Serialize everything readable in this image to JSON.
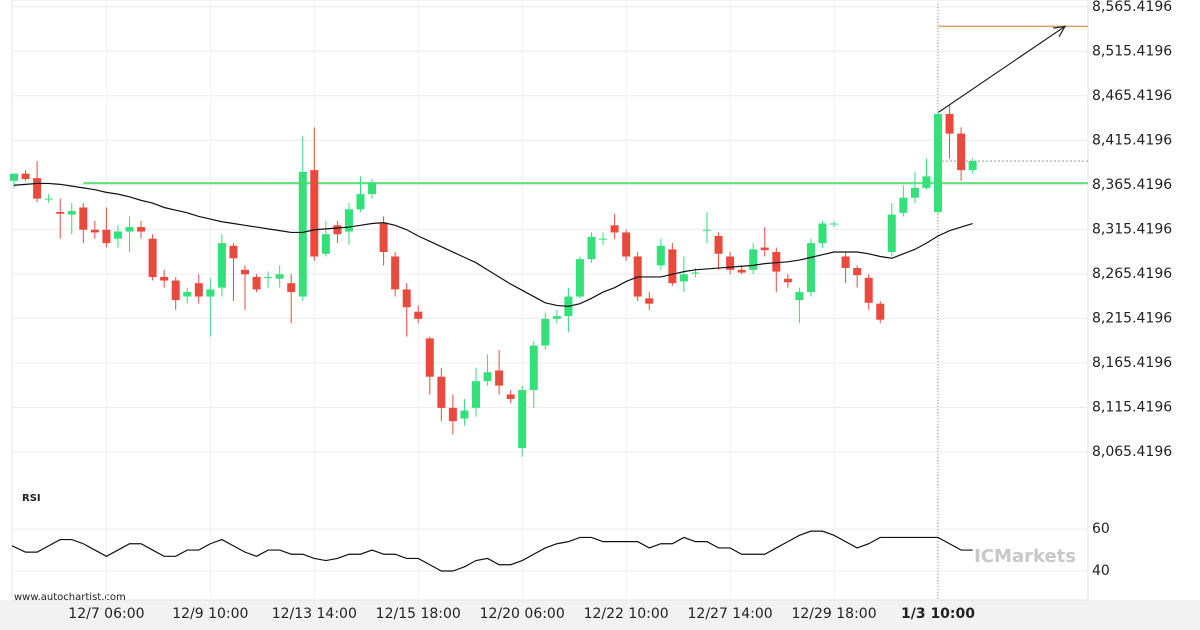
{
  "chart_data": {
    "type": "candlestick",
    "categories": [
      null,
      null,
      null,
      null,
      null,
      null,
      null,
      null,
      "12/7 06:00",
      null,
      null,
      null,
      null,
      null,
      null,
      null,
      null,
      "12/9 10:00",
      null,
      null,
      null,
      null,
      null,
      null,
      null,
      null,
      "12/13 14:00",
      null,
      null,
      null,
      null,
      null,
      null,
      null,
      null,
      "12/15 18:00",
      null,
      null,
      null,
      null,
      null,
      null,
      null,
      null,
      "12/20 06:00",
      null,
      null,
      null,
      null,
      null,
      null,
      null,
      null,
      "12/22 10:00",
      null,
      null,
      null,
      null,
      null,
      null,
      null,
      null,
      "12/27 14:00",
      null,
      null,
      null,
      null,
      null,
      null,
      null,
      null,
      "12/29 18:00",
      null,
      null,
      null,
      null,
      null,
      null,
      null,
      null,
      "1/3 10:00",
      null,
      null,
      null
    ],
    "open": [
      8370,
      8378,
      8373,
      8350,
      8335,
      8332,
      8340,
      8315,
      8315,
      8305,
      8313,
      8318,
      8305,
      8262,
      8258,
      8240,
      8255,
      8240,
      8250,
      8297,
      8270,
      8262,
      8262,
      8260,
      8255,
      8240,
      8382,
      8288,
      8320,
      8313,
      8338,
      8355,
      8322,
      8285,
      8248,
      8223,
      8193,
      8150,
      8115,
      8103,
      8115,
      8145,
      8157,
      8130,
      8070,
      8135,
      8185,
      8215,
      8218,
      8240,
      8282,
      8305,
      8320,
      8312,
      8285,
      8238,
      8275,
      8293,
      8257,
      8267,
      8315,
      8308,
      8285,
      8270,
      8270,
      8295,
      8290,
      8260,
      8236,
      8245,
      8300,
      8322,
      8285,
      8272,
      8261,
      8232,
      8290,
      8334,
      8351,
      8362,
      8335,
      8445,
      8423,
      8382
    ],
    "high": [
      8378,
      8382,
      8392,
      8355,
      8350,
      8345,
      8345,
      8325,
      8340,
      8320,
      8330,
      8325,
      8310,
      8270,
      8262,
      8250,
      8265,
      8260,
      8310,
      8300,
      8275,
      8265,
      8268,
      8275,
      8265,
      8420,
      8430,
      8325,
      8325,
      8345,
      8375,
      8372,
      8330,
      8290,
      8255,
      8230,
      8195,
      8160,
      8130,
      8125,
      8160,
      8175,
      8180,
      8135,
      8140,
      8190,
      8222,
      8225,
      8250,
      8285,
      8312,
      8312,
      8333,
      8315,
      8290,
      8245,
      8305,
      8300,
      8285,
      8272,
      8335,
      8312,
      8290,
      8275,
      8300,
      8318,
      8295,
      8265,
      8250,
      8305,
      8325,
      8325,
      8290,
      8275,
      8265,
      8235,
      8345,
      8365,
      8380,
      8395,
      8448,
      8455,
      8430,
      8395
    ],
    "low": [
      8362,
      8370,
      8346,
      8345,
      8305,
      8310,
      8300,
      8305,
      8295,
      8295,
      8290,
      8305,
      8258,
      8250,
      8225,
      8232,
      8232,
      8195,
      8240,
      8235,
      8225,
      8245,
      8250,
      8250,
      8210,
      8235,
      8280,
      8285,
      8300,
      8298,
      8335,
      8350,
      8275,
      8240,
      8195,
      8210,
      8130,
      8100,
      8085,
      8095,
      8105,
      8140,
      8130,
      8120,
      8060,
      8115,
      8180,
      8210,
      8200,
      8238,
      8278,
      8298,
      8305,
      8280,
      8235,
      8225,
      8270,
      8252,
      8245,
      8262,
      8300,
      8270,
      8265,
      8265,
      8265,
      8285,
      8245,
      8250,
      8210,
      8240,
      8295,
      8318,
      8255,
      8250,
      8225,
      8210,
      8285,
      8330,
      8345,
      8360,
      8333,
      8395,
      8370,
      8378
    ],
    "close": [
      8378,
      8372,
      8350,
      8350,
      8333,
      8336,
      8315,
      8312,
      8300,
      8313,
      8318,
      8313,
      8262,
      8258,
      8236,
      8245,
      8240,
      8248,
      8300,
      8283,
      8265,
      8248,
      8262,
      8265,
      8245,
      8380,
      8285,
      8310,
      8310,
      8338,
      8355,
      8368,
      8290,
      8248,
      8228,
      8215,
      8150,
      8115,
      8100,
      8112,
      8145,
      8155,
      8140,
      8125,
      8135,
      8185,
      8215,
      8218,
      8240,
      8282,
      8307,
      8305,
      8312,
      8285,
      8240,
      8232,
      8297,
      8255,
      8265,
      8267,
      8315,
      8288,
      8270,
      8267,
      8293,
      8292,
      8268,
      8256,
      8245,
      8300,
      8322,
      8322,
      8272,
      8264,
      8233,
      8214,
      8332,
      8351,
      8362,
      8375,
      8445,
      8423,
      8382,
      8392
    ],
    "moving_average": [
      8365,
      8366,
      8367,
      8367,
      8366,
      8364,
      8362,
      8360,
      8357,
      8355,
      8352,
      8348,
      8345,
      8340,
      8337,
      8334,
      8330,
      8327,
      8324,
      8322,
      8320,
      8318,
      8316,
      8314,
      8312,
      8312,
      8315,
      8316,
      8317,
      8318,
      8320,
      8322,
      8323,
      8320,
      8315,
      8308,
      8302,
      8296,
      8290,
      8284,
      8278,
      8270,
      8262,
      8254,
      8247,
      8240,
      8233,
      8230,
      8229,
      8232,
      8238,
      8245,
      8250,
      8257,
      8262,
      8262,
      8262,
      8265,
      8268,
      8270,
      8271,
      8272,
      8273,
      8274,
      8275,
      8277,
      8278,
      8279,
      8281,
      8284,
      8287,
      8290,
      8290,
      8290,
      8288,
      8285,
      8283,
      8288,
      8293,
      8300,
      8308,
      8314,
      8318,
      8322
    ],
    "up_color": "#33e07a",
    "down_color": "#ea4a3d",
    "level": 8367.4,
    "target": 8543.4,
    "arrow_from": 8447,
    "ylim": [
      8034,
      8573
    ],
    "yticks": [
      {
        "value": 8065.4196,
        "label": "8,065.4196"
      },
      {
        "value": 8115.4196,
        "label": "8,115.4196"
      },
      {
        "value": 8165.4196,
        "label": "8,165.4196"
      },
      {
        "value": 8215.4196,
        "label": "8,215.4196"
      },
      {
        "value": 8265.4196,
        "label": "8,265.4196"
      },
      {
        "value": 8315.4196,
        "label": "8,315.4196"
      },
      {
        "value": 8365.4196,
        "label": "8,365.4196"
      },
      {
        "value": 8415.4196,
        "label": "8,415.4196"
      },
      {
        "value": 8465.4196,
        "label": "8,465.4196"
      },
      {
        "value": 8515.4196,
        "label": "8,515.4196"
      },
      {
        "value": 8565.4196,
        "label": "8,565.4196"
      }
    ],
    "grid": true,
    "rsi": {
      "label": "RSI",
      "values": [
        52,
        49,
        49,
        52,
        55,
        55,
        53,
        50,
        47,
        50,
        53,
        53,
        50,
        47,
        47,
        50,
        50,
        53,
        55,
        52,
        49,
        47,
        50,
        50,
        48,
        48,
        46,
        45,
        46,
        48,
        48,
        50,
        48,
        48,
        46,
        46,
        43,
        40,
        40,
        42,
        45,
        46,
        43,
        43,
        45,
        48,
        51,
        53,
        54,
        56,
        56,
        54,
        54,
        54,
        54,
        51,
        53,
        53,
        56,
        54,
        54,
        51,
        51,
        48,
        48,
        48,
        51,
        54,
        57,
        59,
        59,
        57,
        54,
        51,
        53,
        56,
        56,
        56,
        56,
        56,
        56,
        53,
        50,
        50
      ],
      "ylim": [
        26.2,
        78.6
      ],
      "yticks": [
        40,
        60
      ]
    },
    "source": "www.autochartist.com",
    "watermark": "ICMarkets"
  }
}
